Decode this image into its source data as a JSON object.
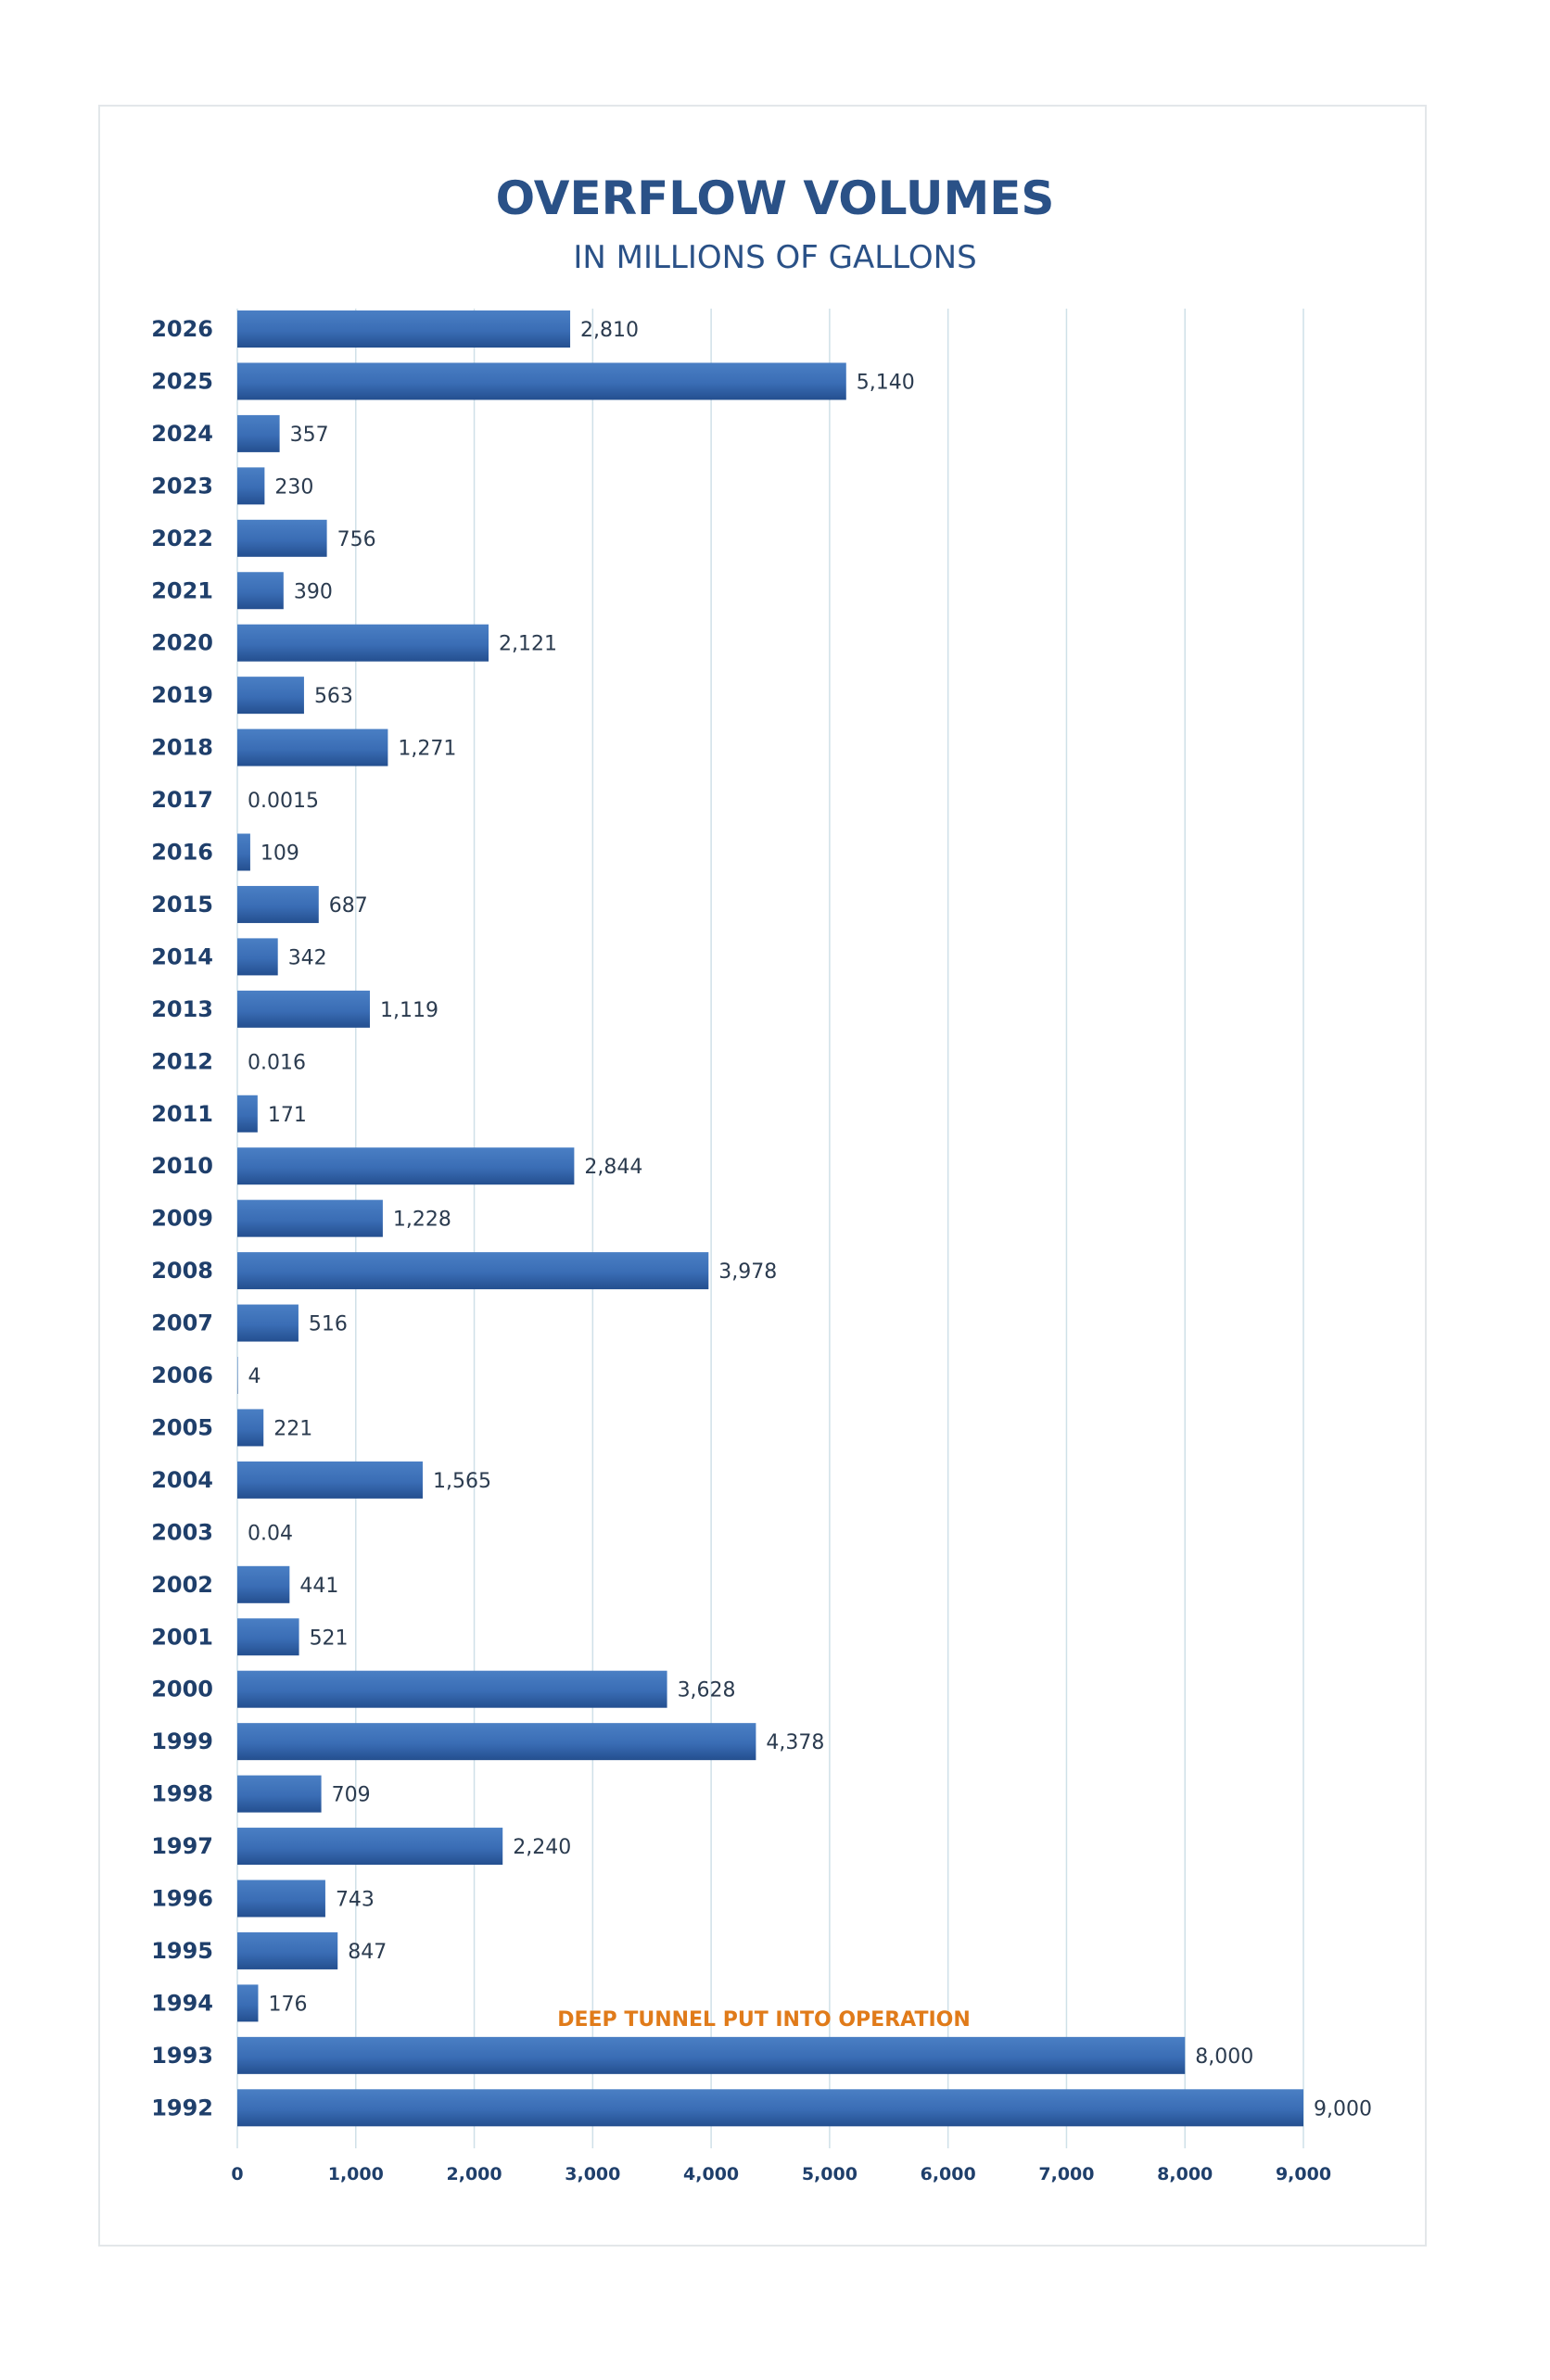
{
  "chart_data": {
    "type": "bar",
    "orientation": "horizontal",
    "title": "OVERFLOW VOLUMES",
    "subtitle": "IN MILLIONS OF GALLONS",
    "categories": [
      "2026",
      "2025",
      "2024",
      "2023",
      "2022",
      "2021",
      "2020",
      "2019",
      "2018",
      "2017",
      "2016",
      "2015",
      "2014",
      "2013",
      "2012",
      "2011",
      "2010",
      "2009",
      "2008",
      "2007",
      "2006",
      "2005",
      "2004",
      "2003",
      "2002",
      "2001",
      "2000",
      "1999",
      "1998",
      "1997",
      "1996",
      "1995",
      "1994",
      "1993",
      "1992"
    ],
    "values": [
      2810,
      5140,
      357,
      230,
      756,
      390,
      2121,
      563,
      1271,
      0.0015,
      109,
      687,
      342,
      1119,
      0.016,
      171,
      2844,
      1228,
      3978,
      516,
      4,
      221,
      1565,
      0.04,
      441,
      521,
      3628,
      4378,
      709,
      2240,
      743,
      847,
      176,
      8000,
      9000
    ],
    "value_labels": [
      "2,810",
      "5,140",
      "357",
      "230",
      "756",
      "390",
      "2,121",
      "563",
      "1,271",
      "0.0015",
      "109",
      "687",
      "342",
      "1,119",
      "0.016",
      "171",
      "2,844",
      "1,228",
      "3,978",
      "516",
      "4",
      "221",
      "1,565",
      "0.04",
      "441",
      "521",
      "3,628",
      "4,378",
      "709",
      "2,240",
      "743",
      "847",
      "176",
      "8,000",
      "9,000"
    ],
    "xlim": [
      0,
      9000
    ],
    "x_ticks": [
      0,
      1000,
      2000,
      3000,
      4000,
      5000,
      6000,
      7000,
      8000,
      9000
    ],
    "x_tick_labels": [
      "0",
      "1,000",
      "2,000",
      "3,000",
      "4,000",
      "5,000",
      "6,000",
      "7,000",
      "8,000",
      "9,000"
    ],
    "grid": "vertical",
    "annotation": {
      "text": "DEEP TUNNEL PUT INTO OPERATION",
      "position": "above-1993-bar"
    },
    "colors": {
      "bar": "#3a6db5",
      "bar_dark": "#244f8f",
      "title": "#2a5187",
      "annotation": "#e07b1a",
      "grid": "#cfe0e8"
    }
  }
}
